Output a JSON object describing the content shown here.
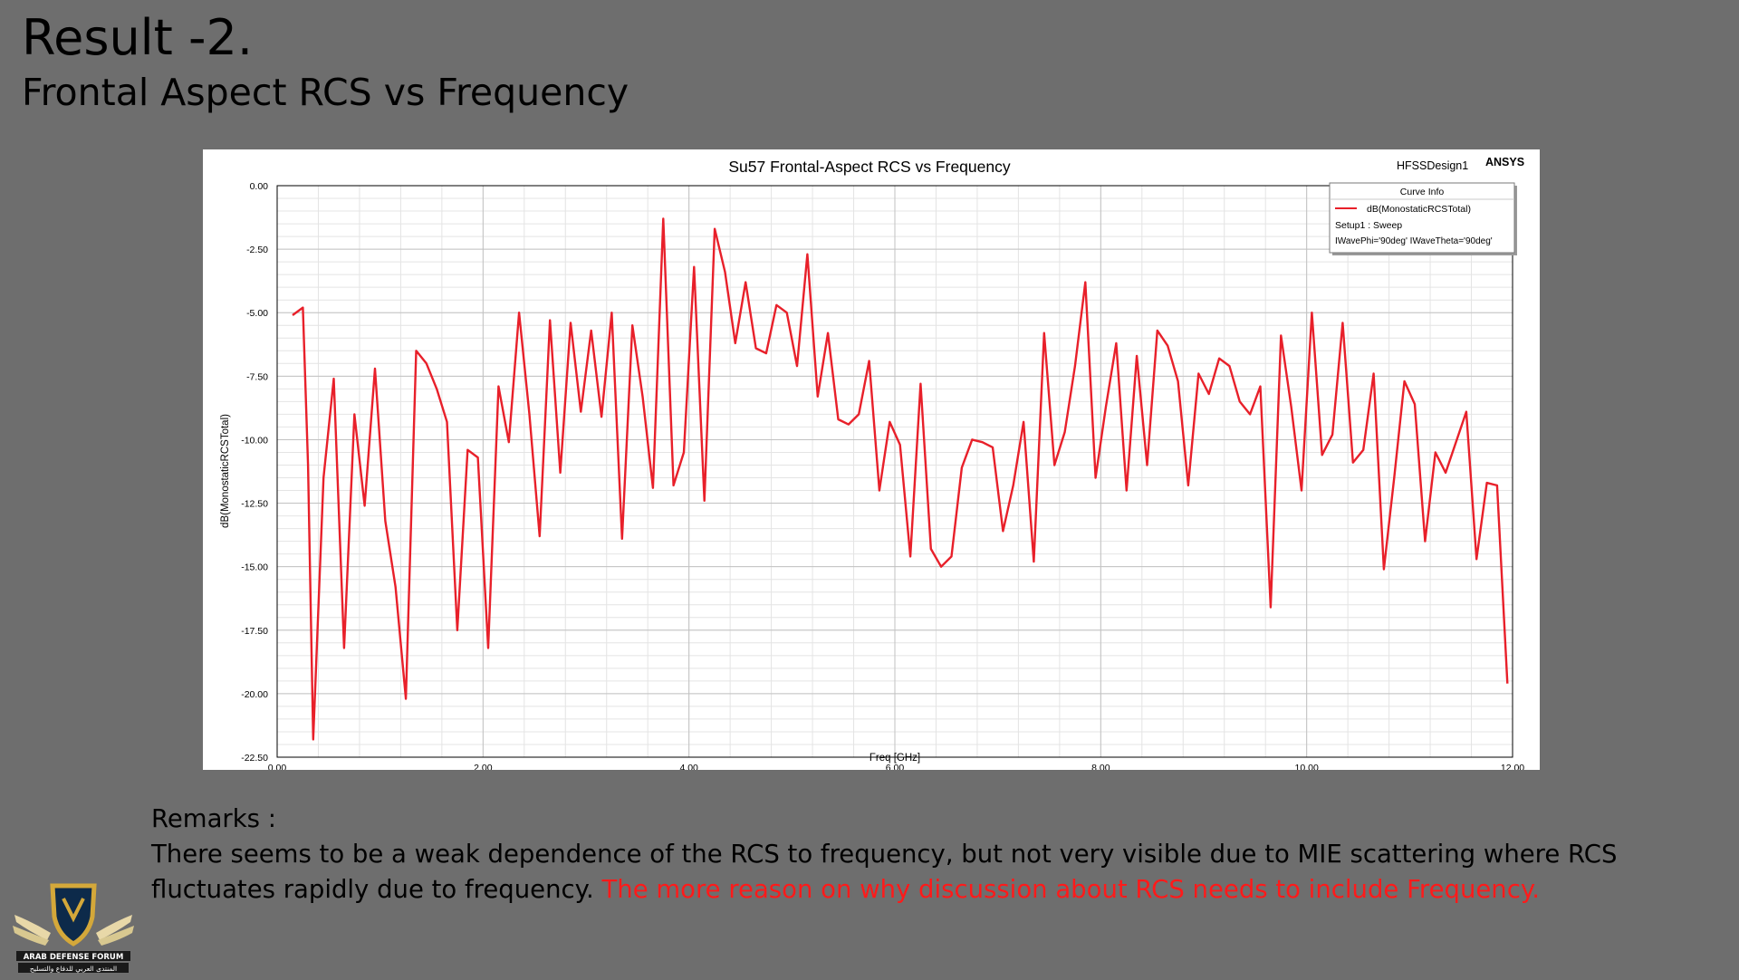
{
  "slide": {
    "title": "Result -2.",
    "subtitle": "Frontal Aspect RCS vs Frequency"
  },
  "remarks": {
    "heading": "Remarks :",
    "body": "There seems to be a weak dependence of the RCS to frequency, but not very visible due to MIE scattering where RCS fluctuates rapidly due to frequency.",
    "highlight": "The more reason on why discussion about RCS needs to include Frequency.",
    "highlight_color": "#ff1a1a"
  },
  "logo": {
    "text_line1": "ARAB DEFENSE FORUM",
    "text_line2": "المنتدى العربي للدفاع والتسليح",
    "icon": "shield-wings-logo"
  },
  "chart_data": {
    "type": "line",
    "title": "Su57 Frontal-Aspect RCS vs Frequency",
    "xlabel": "Freq [GHz]",
    "ylabel": "dB(MonostaticRCSTotal)",
    "xlim": [
      0,
      12
    ],
    "ylim": [
      -22.5,
      0
    ],
    "x_ticks": [
      "0.00",
      "2.00",
      "4.00",
      "6.00",
      "8.00",
      "10.00",
      "12.00"
    ],
    "y_ticks": [
      "0.00",
      "-2.50",
      "-5.00",
      "-7.50",
      "-10.00",
      "-12.50",
      "-15.00",
      "-17.50",
      "-20.00",
      "-22.50"
    ],
    "grid": true,
    "design_label": "HFSSDesign1",
    "brand_label": "ANSYS",
    "line_color": "#e8202a",
    "legend": {
      "placement": "top-right",
      "title": "Curve Info",
      "entry": "dB(MonostaticRCSTotal)",
      "setup": "Setup1 : Sweep",
      "params": "IWavePhi='90deg' IWaveTheta='90deg'"
    },
    "series": [
      {
        "name": "dB(MonostaticRCSTotal)",
        "x": [
          0.15,
          0.25,
          0.3,
          0.35,
          0.45,
          0.55,
          0.65,
          0.75,
          0.85,
          0.95,
          1.05,
          1.15,
          1.25,
          1.35,
          1.45,
          1.55,
          1.65,
          1.75,
          1.85,
          1.95,
          2.05,
          2.15,
          2.25,
          2.35,
          2.45,
          2.55,
          2.65,
          2.75,
          2.85,
          2.95,
          3.05,
          3.15,
          3.25,
          3.35,
          3.45,
          3.55,
          3.65,
          3.75,
          3.85,
          3.95,
          4.05,
          4.15,
          4.25,
          4.35,
          4.45,
          4.55,
          4.65,
          4.75,
          4.85,
          4.95,
          5.05,
          5.15,
          5.25,
          5.35,
          5.45,
          5.55,
          5.65,
          5.75,
          5.85,
          5.95,
          6.05,
          6.15,
          6.25,
          6.35,
          6.45,
          6.55,
          6.65,
          6.75,
          6.85,
          6.95,
          7.05,
          7.15,
          7.25,
          7.35,
          7.45,
          7.55,
          7.65,
          7.75,
          7.85,
          7.95,
          8.05,
          8.15,
          8.25,
          8.35,
          8.45,
          8.55,
          8.65,
          8.75,
          8.85,
          8.95,
          9.05,
          9.15,
          9.25,
          9.35,
          9.45,
          9.55,
          9.65,
          9.75,
          9.85,
          9.95,
          10.05,
          10.15,
          10.25,
          10.35,
          10.45,
          10.55,
          10.65,
          10.75,
          10.85,
          10.95,
          11.05,
          11.15,
          11.25,
          11.35,
          11.45,
          11.55,
          11.65,
          11.75,
          11.85,
          11.95
        ],
        "y": [
          -5.1,
          -4.8,
          -11.0,
          -21.8,
          -11.5,
          -7.6,
          -18.2,
          -9.0,
          -12.6,
          -7.2,
          -13.2,
          -15.8,
          -20.2,
          -6.5,
          -7.0,
          -8.0,
          -9.3,
          -17.5,
          -10.4,
          -10.7,
          -18.2,
          -7.9,
          -10.1,
          -5.0,
          -9.0,
          -13.8,
          -5.3,
          -11.3,
          -5.4,
          -8.9,
          -5.7,
          -9.1,
          -5.0,
          -13.9,
          -5.5,
          -8.3,
          -11.9,
          -1.3,
          -11.8,
          -10.5,
          -3.2,
          -12.4,
          -1.7,
          -3.4,
          -6.2,
          -3.8,
          -6.4,
          -6.6,
          -4.7,
          -5.0,
          -7.1,
          -2.7,
          -8.3,
          -5.8,
          -9.2,
          -9.4,
          -9.0,
          -6.9,
          -12.0,
          -9.3,
          -10.2,
          -14.6,
          -7.8,
          -14.3,
          -15.0,
          -14.6,
          -11.1,
          -10.0,
          -10.1,
          -10.3,
          -13.6,
          -11.8,
          -9.3,
          -14.8,
          -5.8,
          -11.0,
          -9.7,
          -7.1,
          -3.8,
          -11.5,
          -8.7,
          -6.2,
          -12.0,
          -6.7,
          -11.0,
          -5.7,
          -6.3,
          -7.7,
          -11.8,
          -7.4,
          -8.2,
          -6.8,
          -7.1,
          -8.5,
          -9.0,
          -7.9,
          -16.6,
          -5.9,
          -8.7,
          -12.0,
          -5.0,
          -10.6,
          -9.8,
          -5.4,
          -10.9,
          -10.4,
          -7.4,
          -15.1,
          -11.5,
          -7.7,
          -8.6,
          -14.0,
          -10.5,
          -11.3,
          -10.1,
          -8.9,
          -14.7,
          -11.7,
          -11.8,
          -19.6
        ]
      }
    ]
  }
}
